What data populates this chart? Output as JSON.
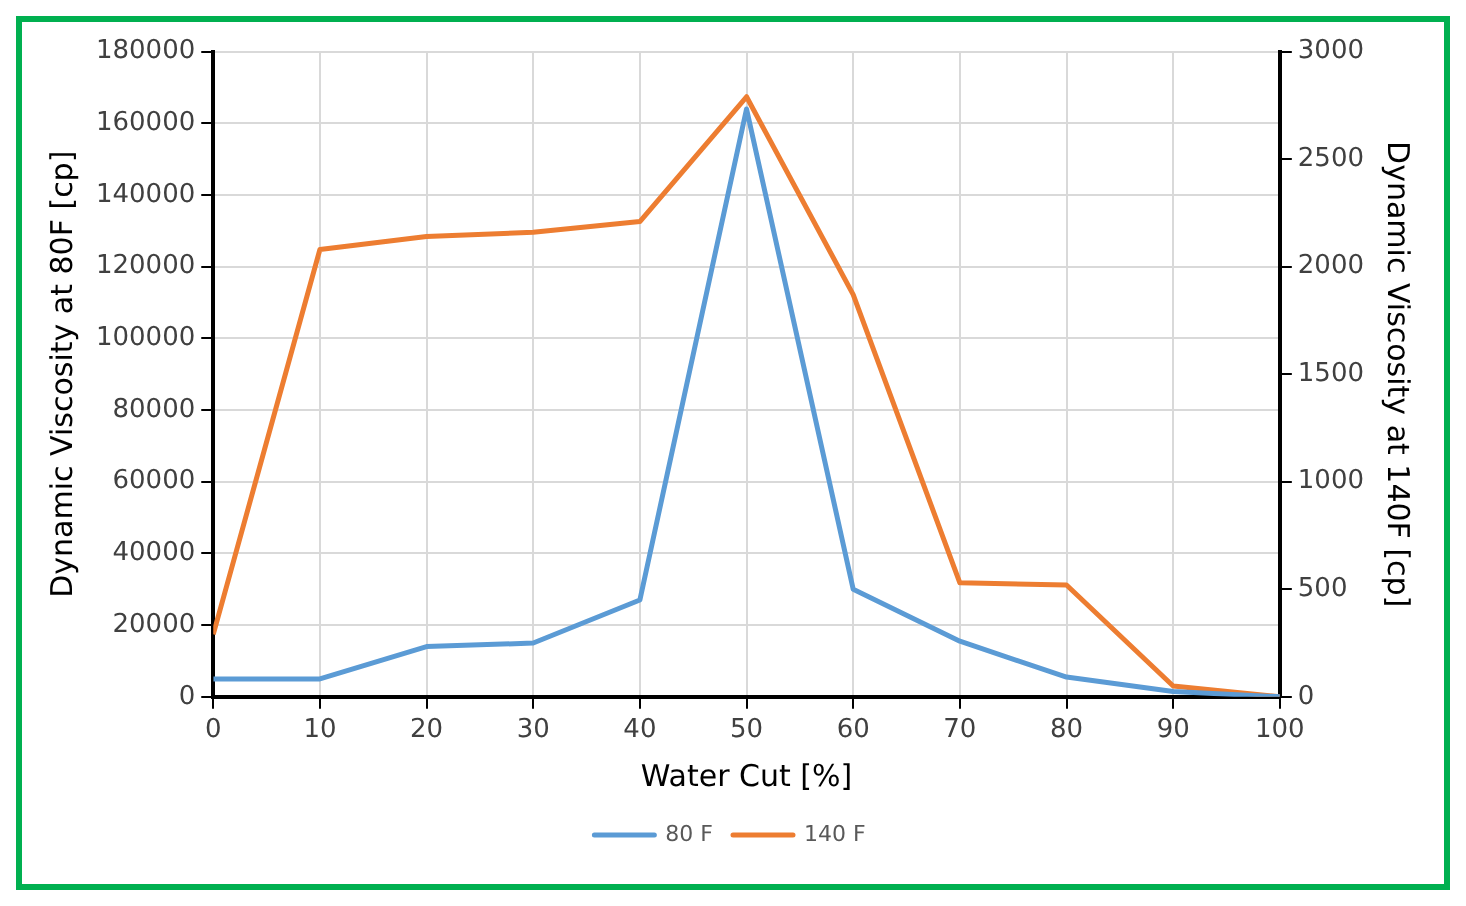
{
  "chart_data": {
    "type": "line",
    "xlabel": "Water Cut [%]",
    "ylabel": "Dynamic Viscosity at 80F [cp]",
    "y2label": "Dynamic Viscosity at 140F [cp]",
    "x": [
      0,
      10,
      20,
      30,
      40,
      50,
      60,
      70,
      80,
      90,
      100
    ],
    "xlim": [
      0,
      100
    ],
    "xticks": [
      0,
      10,
      20,
      30,
      40,
      50,
      60,
      70,
      80,
      90,
      100
    ],
    "ylim": [
      0,
      180000
    ],
    "yticks": [
      0,
      20000,
      40000,
      60000,
      80000,
      100000,
      120000,
      140000,
      160000,
      180000
    ],
    "y2lim": [
      0,
      3000
    ],
    "y2ticks": [
      0,
      500,
      1000,
      1500,
      2000,
      2500,
      3000
    ],
    "grid": true,
    "legend": "bottom",
    "marker": "none",
    "line_style": "solid",
    "series": [
      {
        "name": "80 F",
        "color": "#5b9bd5",
        "values": [
          5000,
          5000,
          14000,
          15000,
          27000,
          164000,
          30000,
          15500,
          5500,
          1500,
          0
        ]
      },
      {
        "name": "140 F",
        "color": "#ed7d31",
        "axis": "y2",
        "values": [
          290,
          2080,
          2140,
          2160,
          2210,
          2790,
          1870,
          530,
          520,
          50,
          0
        ]
      }
    ]
  }
}
